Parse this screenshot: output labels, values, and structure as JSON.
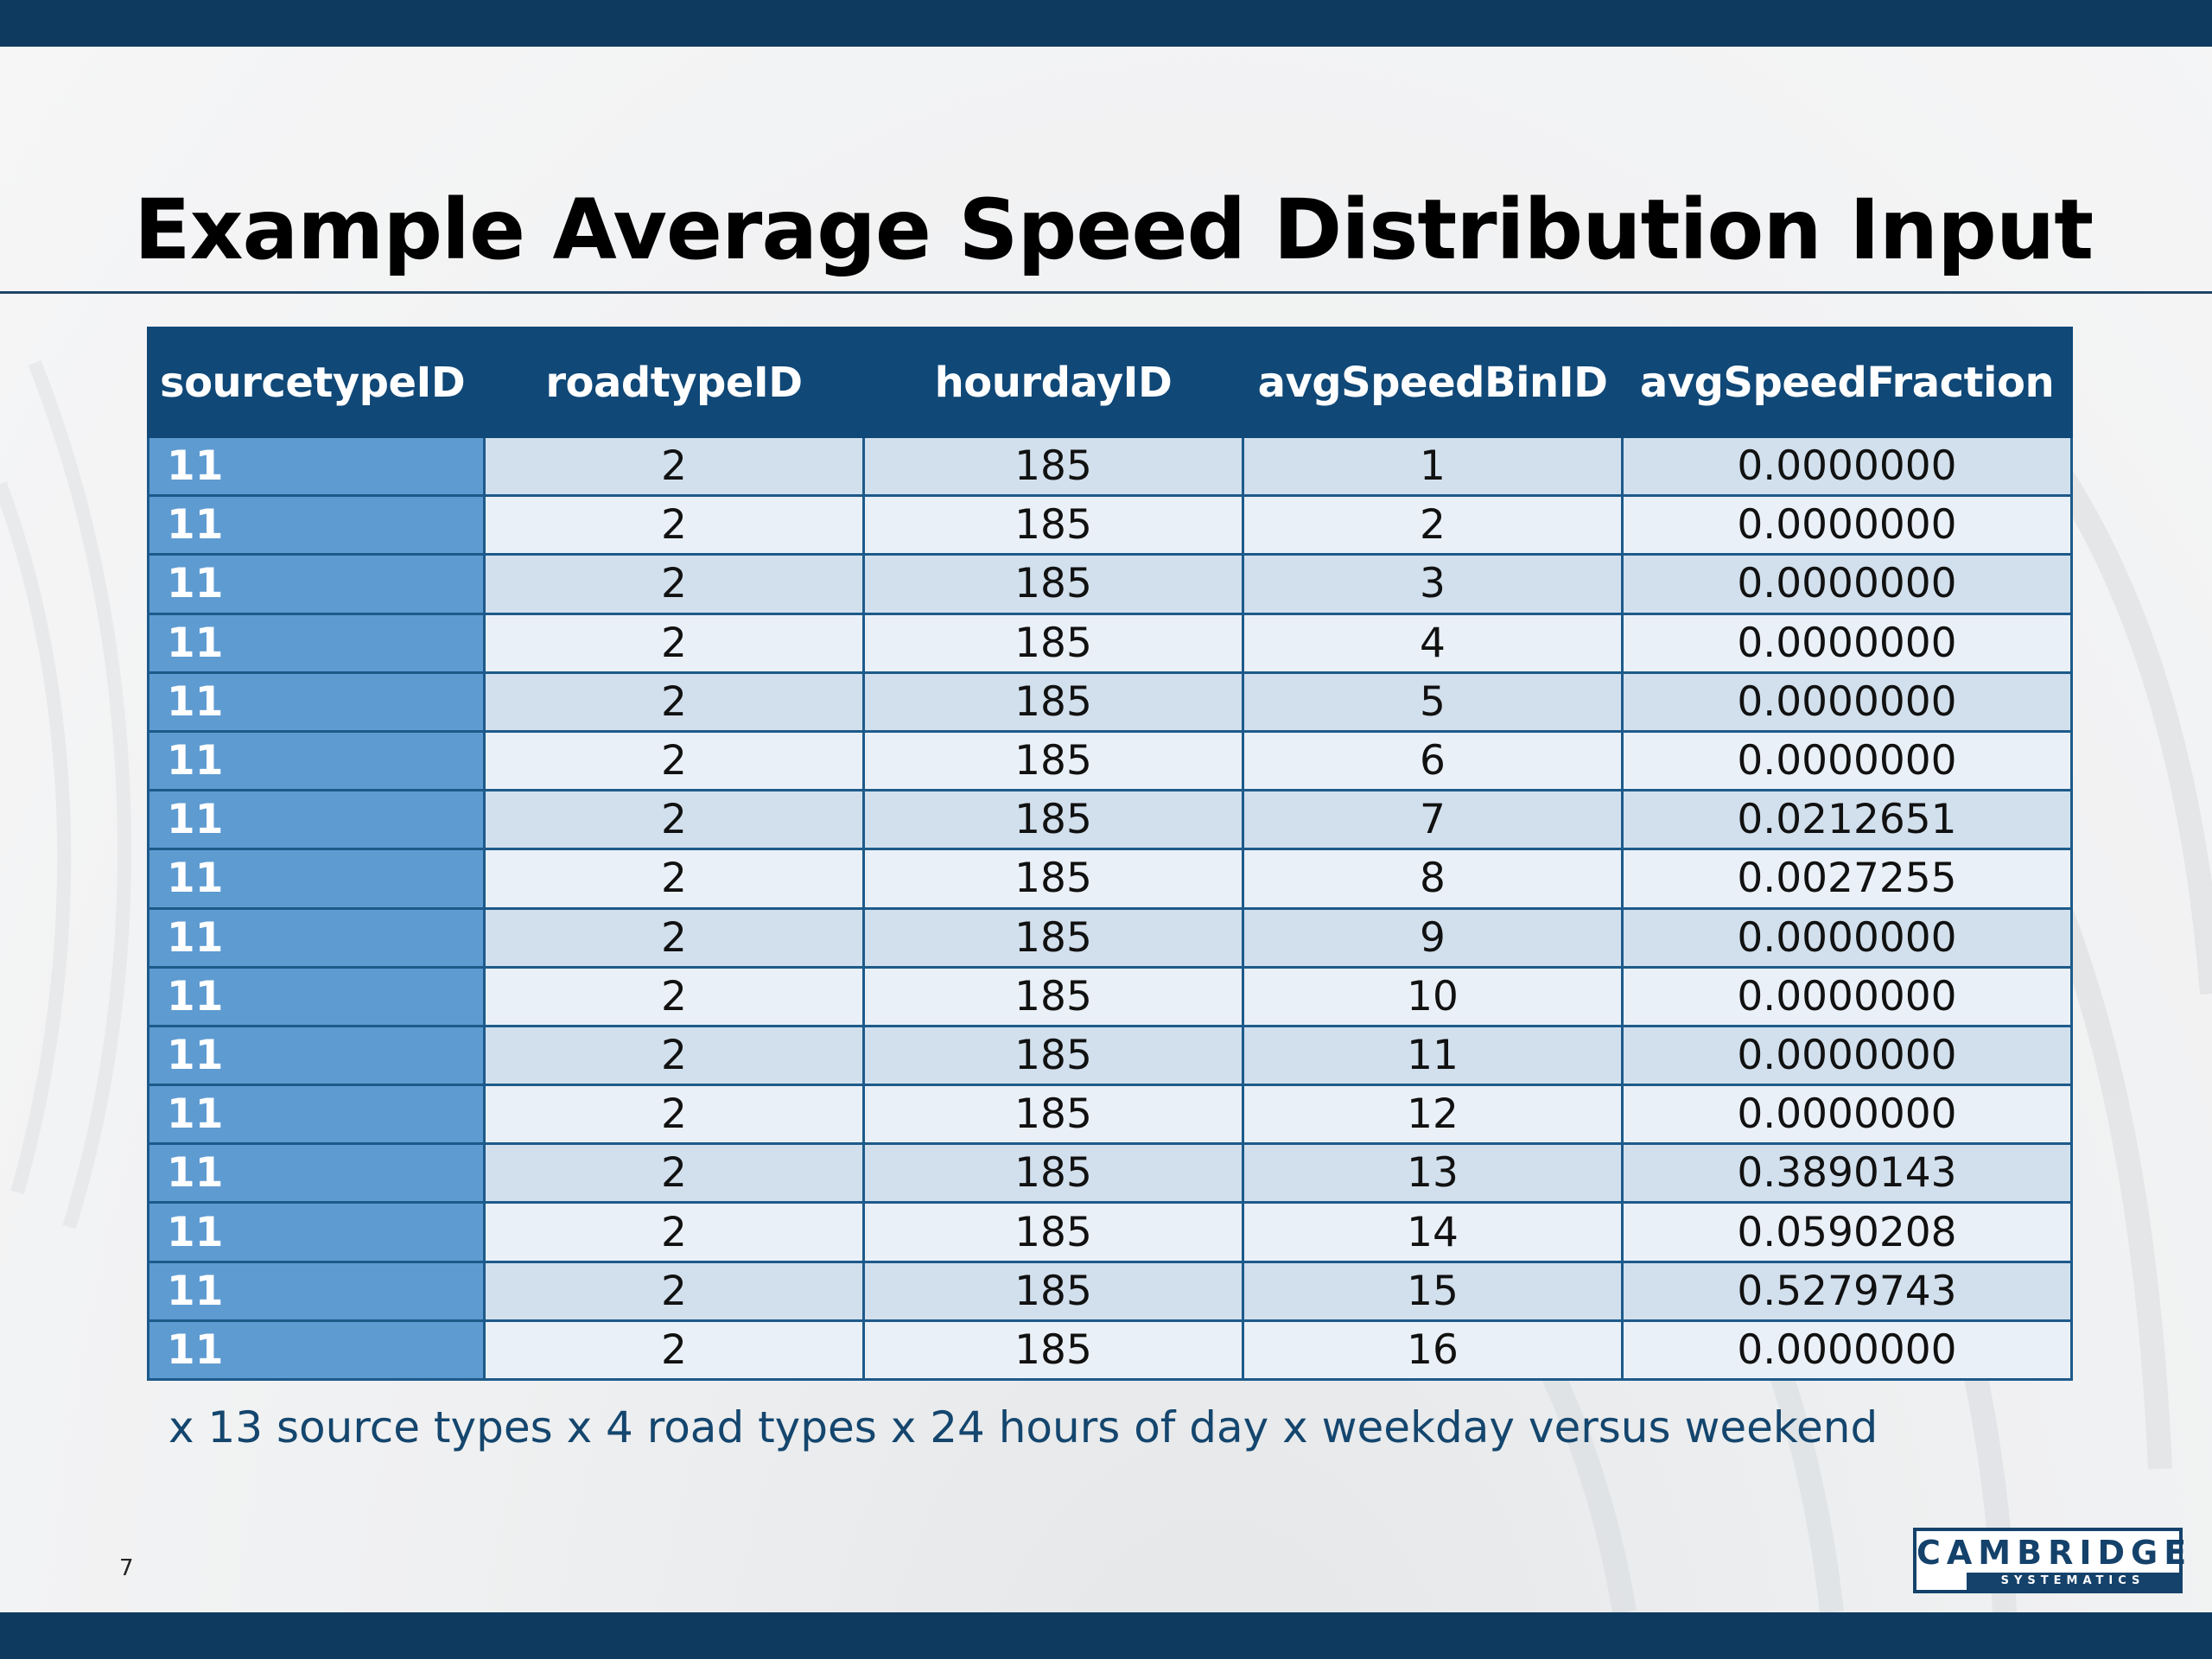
{
  "slide": {
    "title": "Example Average Speed Distribution Input",
    "page_number": "7",
    "footnote": "x 13 source types x 4 road types x 24 hours of day x weekday versus weekend"
  },
  "logo": {
    "name": "CAMBRIDGE",
    "subtitle": "SYSTEMATICS"
  },
  "table": {
    "headers": [
      "sourcetypeID",
      "roadtypeID",
      "hourdayID",
      "avgSpeedBinID",
      "avgSpeedFraction"
    ],
    "rows": [
      [
        "11",
        "2",
        "185",
        "1",
        "0.0000000"
      ],
      [
        "11",
        "2",
        "185",
        "2",
        "0.0000000"
      ],
      [
        "11",
        "2",
        "185",
        "3",
        "0.0000000"
      ],
      [
        "11",
        "2",
        "185",
        "4",
        "0.0000000"
      ],
      [
        "11",
        "2",
        "185",
        "5",
        "0.0000000"
      ],
      [
        "11",
        "2",
        "185",
        "6",
        "0.0000000"
      ],
      [
        "11",
        "2",
        "185",
        "7",
        "0.0212651"
      ],
      [
        "11",
        "2",
        "185",
        "8",
        "0.0027255"
      ],
      [
        "11",
        "2",
        "185",
        "9",
        "0.0000000"
      ],
      [
        "11",
        "2",
        "185",
        "10",
        "0.0000000"
      ],
      [
        "11",
        "2",
        "185",
        "11",
        "0.0000000"
      ],
      [
        "11",
        "2",
        "185",
        "12",
        "0.0000000"
      ],
      [
        "11",
        "2",
        "185",
        "13",
        "0.3890143"
      ],
      [
        "11",
        "2",
        "185",
        "14",
        "0.0590208"
      ],
      [
        "11",
        "2",
        "185",
        "15",
        "0.5279743"
      ],
      [
        "11",
        "2",
        "185",
        "16",
        "0.0000000"
      ]
    ]
  },
  "colors": {
    "bar": "#0f3a5f",
    "header_bg": "#104877",
    "first_column_bg": "#5e9bd1",
    "row_odd": "#d2e0ed",
    "row_even": "#eaf0f7",
    "footnote_text": "#14466e"
  }
}
